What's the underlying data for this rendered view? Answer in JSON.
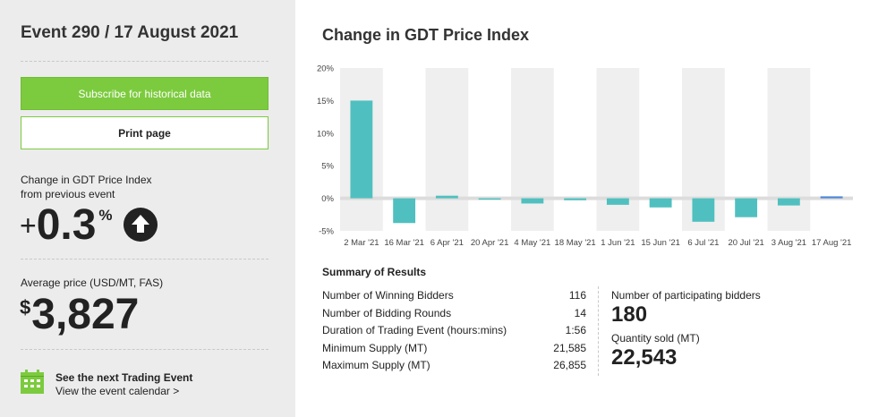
{
  "sidebar": {
    "event_title": "Event 290 / 17 August 2021",
    "subscribe_label": "Subscribe for historical data",
    "print_label": "Print page",
    "change_label_line1": "Change in GDT Price Index",
    "change_label_line2": "from previous event",
    "change_sign": "+",
    "change_value": "0.3",
    "change_unit": "%",
    "change_direction_icon": "up-arrow-icon",
    "avg_label": "Average price (USD/MT, FAS)",
    "avg_currency": "$",
    "avg_value": "3,827",
    "next_event_icon": "calendar-icon",
    "next_event_title": "See the next Trading Event",
    "next_event_link": "View the event calendar >"
  },
  "chart_title": "Change in GDT Price Index",
  "chart_data": {
    "type": "bar",
    "categories": [
      "2 Mar '21",
      "16 Mar '21",
      "6 Apr '21",
      "20 Apr '21",
      "4 May '21",
      "18 May '21",
      "1 Jun '21",
      "15 Jun '21",
      "6 Jul '21",
      "20 Jul '21",
      "3 Aug '21",
      "17 Aug '21"
    ],
    "values": [
      15.0,
      -3.8,
      0.4,
      -0.2,
      -0.8,
      -0.3,
      -1.0,
      -1.4,
      -3.6,
      -2.9,
      -1.1,
      0.3
    ],
    "ylim": [
      -5,
      20
    ],
    "yticks": [
      "20%",
      "15%",
      "10%",
      "5%",
      "0%",
      "-5%"
    ],
    "grid": "alternating column bands",
    "colors": {
      "bar": "#4fc0bf",
      "latest_bar": "#4d86d6",
      "band": "#efefef",
      "zero_line": "#dcdcdc"
    }
  },
  "summary": {
    "title": "Summary of Results",
    "rows": [
      {
        "label": "Number of Winning Bidders",
        "value": "116"
      },
      {
        "label": "Number of Bidding Rounds",
        "value": "14"
      },
      {
        "label": "Duration of Trading Event (hours:mins)",
        "value": "1:56"
      },
      {
        "label": "Minimum Supply (MT)",
        "value": "21,585"
      },
      {
        "label": "Maximum Supply (MT)",
        "value": "26,855"
      }
    ],
    "bidders_label": "Number of participating bidders",
    "bidders_value": "180",
    "quantity_label": "Quantity sold (MT)",
    "quantity_value": "22,543"
  },
  "colors": {
    "accent_green": "#7ccb3e",
    "sidebar_bg": "#ececec"
  }
}
